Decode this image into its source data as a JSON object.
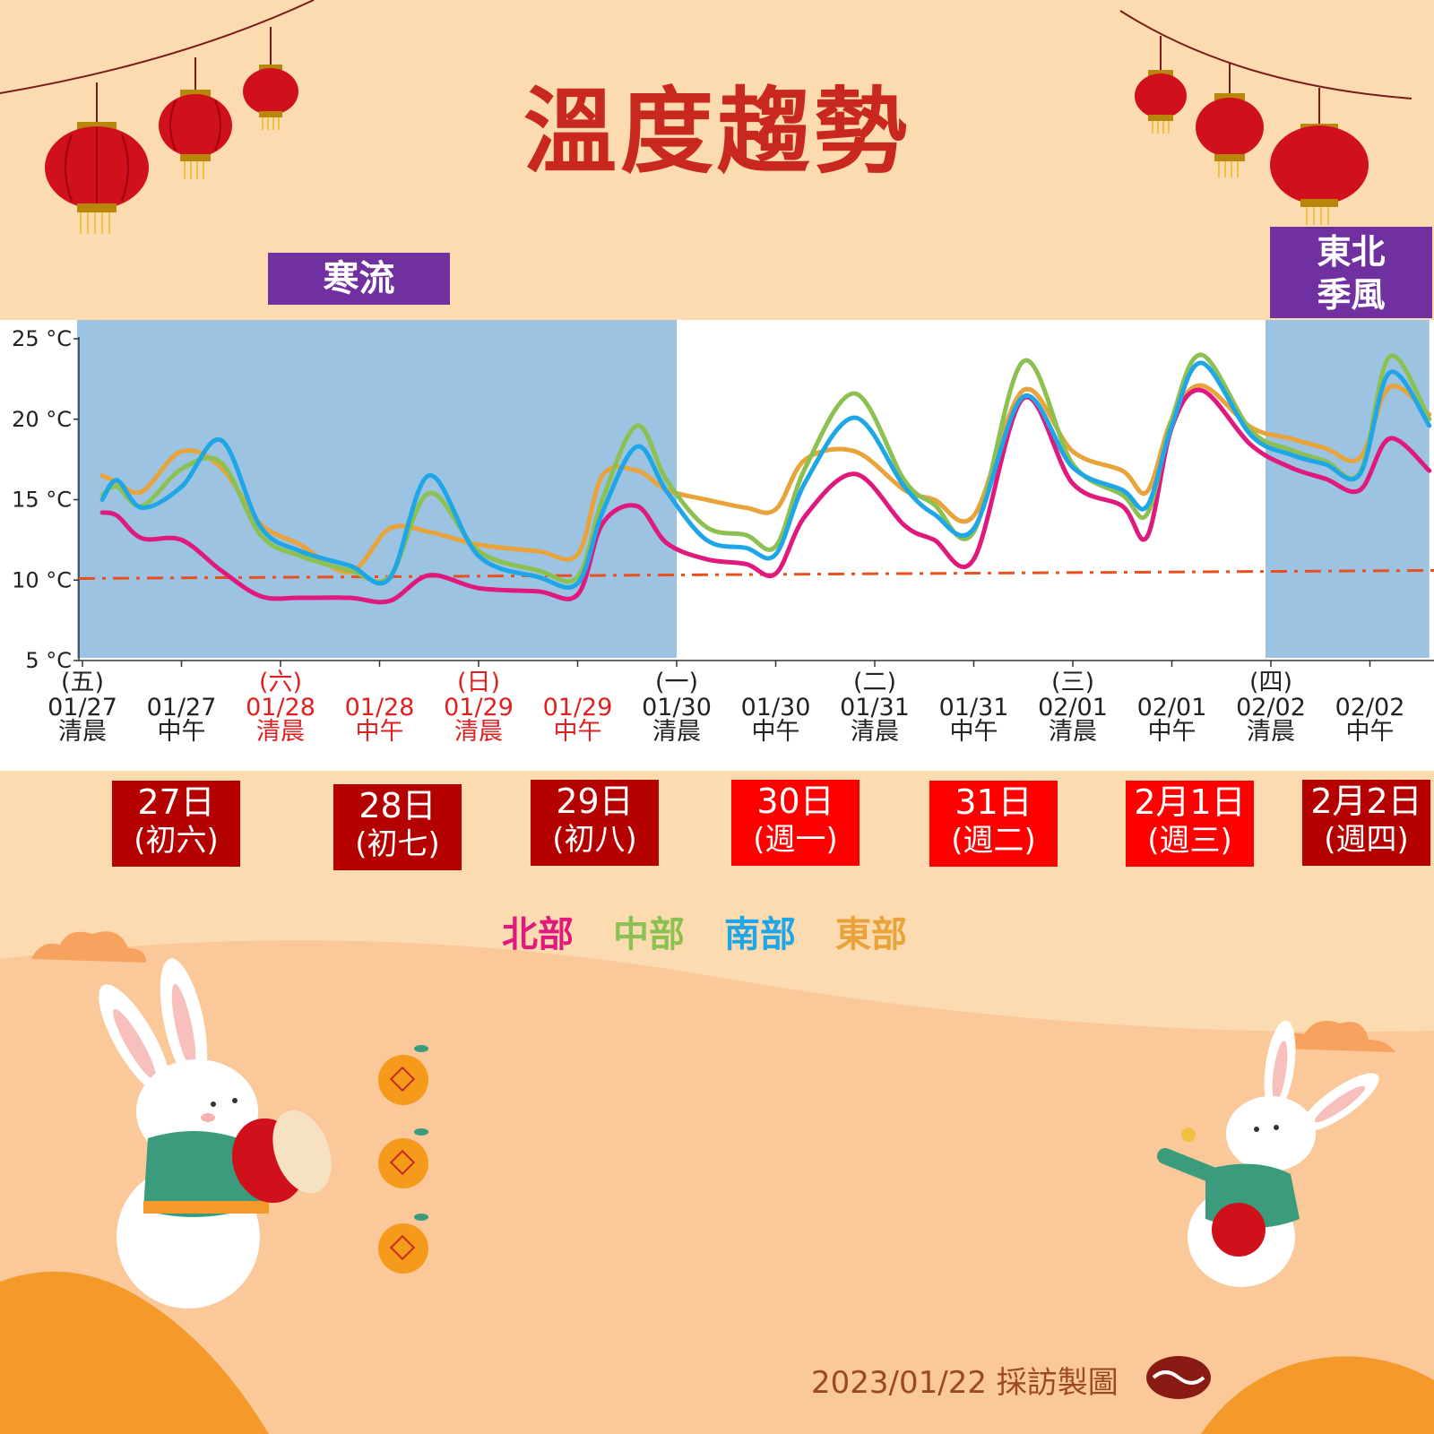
{
  "title": "溫度趨勢",
  "period_tags": {
    "cold": "寒流",
    "monsoon_line1": "東北",
    "monsoon_line2": "季風"
  },
  "legend": [
    {
      "label": "北部",
      "color": "#e0197d"
    },
    {
      "label": "中部",
      "color": "#8cc152"
    },
    {
      "label": "南部",
      "color": "#1ea6e6"
    },
    {
      "label": "東部",
      "color": "#e8a33a"
    }
  ],
  "day_boxes": [
    {
      "day": "27日",
      "sub": "(初六)",
      "color": "#b50000"
    },
    {
      "day": "28日",
      "sub": "(初七)",
      "color": "#b50000"
    },
    {
      "day": "29日",
      "sub": "(初八)",
      "color": "#b50000"
    },
    {
      "day": "30日",
      "sub": "(週一)",
      "color": "#ff0000"
    },
    {
      "day": "31日",
      "sub": "(週二)",
      "color": "#ff0000"
    },
    {
      "day": "2月1日",
      "sub": "(週三)",
      "color": "#ff0000"
    },
    {
      "day": "2月2日",
      "sub": "(週四)",
      "color": "#b50000"
    }
  ],
  "credit": "2023/01/22 採訪製圖",
  "chart_data": {
    "type": "line",
    "ylim": [
      5,
      25
    ],
    "y_ticks": [
      "25 °C",
      "20 °C",
      "15 °C",
      "10 °C",
      "5 °C"
    ],
    "y_tick_values": [
      25,
      20,
      15,
      10,
      5
    ],
    "x_ticks": [
      {
        "weekday": "(五)",
        "date": "01/27",
        "time": "清晨",
        "holiday": false
      },
      {
        "weekday": "",
        "date": "01/27",
        "time": "中午",
        "holiday": false
      },
      {
        "weekday": "(六)",
        "date": "01/28",
        "time": "清晨",
        "holiday": true
      },
      {
        "weekday": "",
        "date": "01/28",
        "time": "中午",
        "holiday": true
      },
      {
        "weekday": "(日)",
        "date": "01/29",
        "time": "清晨",
        "holiday": true
      },
      {
        "weekday": "",
        "date": "01/29",
        "time": "中午",
        "holiday": true
      },
      {
        "weekday": "(一)",
        "date": "01/30",
        "time": "清晨",
        "holiday": false
      },
      {
        "weekday": "",
        "date": "01/30",
        "time": "中午",
        "holiday": false
      },
      {
        "weekday": "(二)",
        "date": "01/31",
        "time": "清晨",
        "holiday": false
      },
      {
        "weekday": "",
        "date": "01/31",
        "time": "中午",
        "holiday": false
      },
      {
        "weekday": "(三)",
        "date": "02/01",
        "time": "清晨",
        "holiday": false
      },
      {
        "weekday": "",
        "date": "02/01",
        "time": "中午",
        "holiday": false
      },
      {
        "weekday": "(四)",
        "date": "02/02",
        "time": "清晨",
        "holiday": false
      },
      {
        "weekday": "",
        "date": "02/02",
        "time": "中午",
        "holiday": false
      }
    ],
    "shaded_ranges": [
      [
        0,
        6
      ],
      [
        12,
        13.6
      ]
    ],
    "threshold": {
      "from": 10.1,
      "to": 10.6,
      "color": "#e8501e"
    },
    "series": [
      {
        "name": "北部",
        "color": "#e0197d",
        "x": [
          0.2,
          0.35,
          0.6,
          1.0,
          1.4,
          1.8,
          2.2,
          2.7,
          3.1,
          3.5,
          4.0,
          4.6,
          5.0,
          5.25,
          5.6,
          5.9,
          6.3,
          6.7,
          7.0,
          7.3,
          7.8,
          8.3,
          8.6,
          9.0,
          9.5,
          10.0,
          10.5,
          10.75,
          11.0,
          11.3,
          11.8,
          12.2,
          12.55,
          12.9,
          13.2,
          13.6
        ],
        "y": [
          14.2,
          14.0,
          12.6,
          12.5,
          10.6,
          9.0,
          8.9,
          8.9,
          8.7,
          10.3,
          9.5,
          9.3,
          9.1,
          13.5,
          14.6,
          12.3,
          11.3,
          11.0,
          10.4,
          14.0,
          16.6,
          13.4,
          12.5,
          11.3,
          21.3,
          16.0,
          14.6,
          12.7,
          19.5,
          21.8,
          18.4,
          17.0,
          16.3,
          15.6,
          18.8,
          16.8
        ]
      },
      {
        "name": "中部",
        "color": "#8cc152",
        "x": [
          0.2,
          0.35,
          0.6,
          1.0,
          1.4,
          1.8,
          2.2,
          2.7,
          3.1,
          3.5,
          4.0,
          4.6,
          5.0,
          5.25,
          5.6,
          5.9,
          6.3,
          6.7,
          7.0,
          7.3,
          7.8,
          8.3,
          8.6,
          9.0,
          9.5,
          10.0,
          10.5,
          10.75,
          11.0,
          11.3,
          11.8,
          12.2,
          12.55,
          12.9,
          13.2,
          13.6
        ],
        "y": [
          15.3,
          15.8,
          14.6,
          16.9,
          17.3,
          12.8,
          11.5,
          10.6,
          10.2,
          15.4,
          11.8,
          10.6,
          10.2,
          15.0,
          19.6,
          16.2,
          13.3,
          12.8,
          12.1,
          17.0,
          21.6,
          16.2,
          14.7,
          13.0,
          23.6,
          17.2,
          15.3,
          14.1,
          20.0,
          24.0,
          19.3,
          18.1,
          17.4,
          16.7,
          23.9,
          20.0
        ]
      },
      {
        "name": "南部",
        "color": "#1ea6e6",
        "x": [
          0.2,
          0.35,
          0.6,
          1.0,
          1.4,
          1.8,
          2.2,
          2.7,
          3.1,
          3.5,
          4.0,
          4.6,
          5.0,
          5.25,
          5.6,
          5.9,
          6.3,
          6.7,
          7.0,
          7.3,
          7.8,
          8.3,
          8.6,
          9.0,
          9.5,
          10.0,
          10.5,
          10.75,
          11.0,
          11.3,
          11.8,
          12.2,
          12.55,
          12.9,
          13.2,
          13.6
        ],
        "y": [
          15.0,
          16.2,
          14.5,
          15.8,
          18.7,
          13.3,
          11.8,
          10.9,
          10.1,
          16.5,
          11.5,
          10.2,
          9.8,
          14.2,
          18.3,
          15.5,
          12.5,
          12.0,
          11.6,
          16.1,
          20.1,
          15.8,
          14.1,
          13.2,
          21.4,
          17.0,
          15.6,
          14.6,
          19.6,
          23.5,
          19.0,
          17.8,
          17.2,
          16.6,
          22.9,
          19.6
        ]
      },
      {
        "name": "東部",
        "color": "#e8a33a",
        "x": [
          0.2,
          0.35,
          0.6,
          1.0,
          1.4,
          1.8,
          2.2,
          2.7,
          3.1,
          3.5,
          4.0,
          4.6,
          5.0,
          5.25,
          5.6,
          5.9,
          6.3,
          6.7,
          7.0,
          7.3,
          7.8,
          8.3,
          8.6,
          9.0,
          9.5,
          10.0,
          10.5,
          10.75,
          11.0,
          11.3,
          11.8,
          12.2,
          12.55,
          12.9,
          13.2,
          13.6
        ],
        "y": [
          16.5,
          16.1,
          15.5,
          18.0,
          17.0,
          13.5,
          12.2,
          10.5,
          13.2,
          13.0,
          12.2,
          11.8,
          11.6,
          16.5,
          16.8,
          15.6,
          15.0,
          14.5,
          14.4,
          17.5,
          18.0,
          15.6,
          15.0,
          14.0,
          21.8,
          18.0,
          16.8,
          15.5,
          20.0,
          22.1,
          19.5,
          18.8,
          18.2,
          17.6,
          22.0,
          20.3
        ]
      }
    ]
  }
}
